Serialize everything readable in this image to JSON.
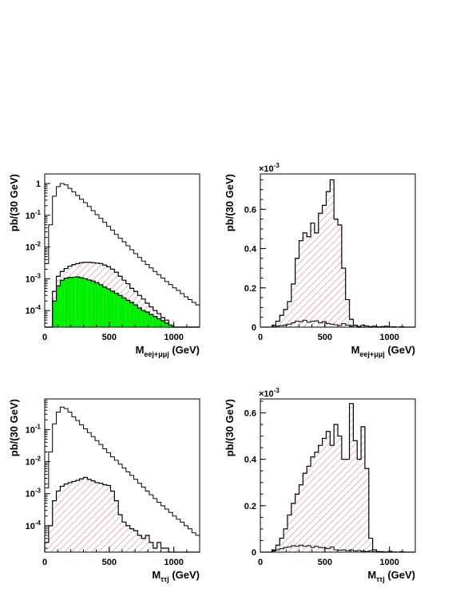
{
  "colors": {
    "frame": "#000000",
    "hatch": "#d9707a",
    "signal_fill": "#00ee00",
    "background": "#ffffff"
  },
  "chart_data": [
    {
      "id": "top-left",
      "type": "histogram",
      "yscale": "log",
      "xlim": [
        0,
        1200
      ],
      "ylim": [
        3e-05,
        2
      ],
      "bin_width": 30,
      "x_ticks": [
        0,
        500,
        1000
      ],
      "y_ticks": [
        {
          "value": 1,
          "label": "1",
          "sup": ""
        },
        {
          "value": 0.1,
          "label": "10",
          "sup": "-1"
        },
        {
          "value": 0.01,
          "label": "10",
          "sup": "-2"
        },
        {
          "value": 0.001,
          "label": "10",
          "sup": "-3"
        },
        {
          "value": 0.0001,
          "label": "10",
          "sup": "-4"
        }
      ],
      "ylabel": "pb/(30 GeV)",
      "xlabel": {
        "main": "M",
        "sub": "eej+μμj",
        "unit": "(GeV)"
      },
      "exponent_label": null,
      "series": [
        {
          "style": "open",
          "values": [
            0.003,
            0.05,
            0.4,
            0.8,
            1.0,
            0.9,
            0.7,
            0.55,
            0.42,
            0.32,
            0.25,
            0.19,
            0.14,
            0.105,
            0.08,
            0.06,
            0.045,
            0.034,
            0.025,
            0.019,
            0.0145,
            0.011,
            0.0082,
            0.0062,
            0.0047,
            0.0036,
            0.0028,
            0.0022,
            0.0017,
            0.00135,
            0.00105,
            0.00082,
            0.00066,
            0.00052,
            0.00043,
            0.00034,
            0.00027,
            0.00022,
            0.00018,
            0.00015
          ]
        },
        {
          "style": "hatched",
          "values": [
            0,
            0,
            0.0004,
            0.0012,
            0.0017,
            0.0021,
            0.0025,
            0.0028,
            0.003,
            0.0032,
            0.0033,
            0.0033,
            0.0032,
            0.0031,
            0.003,
            0.0027,
            0.0024,
            0.002,
            0.0016,
            0.0012,
            0.0009,
            0.0007,
            0.0005,
            0.0004,
            0.0003,
            0.00023,
            0.00017,
            0.00013,
            0.0001,
            8e-05,
            6e-05,
            5e-05,
            0,
            0,
            0,
            0,
            0,
            0,
            0,
            0
          ]
        },
        {
          "style": "filled",
          "values": [
            0,
            0,
            0.0002,
            0.0006,
            0.0009,
            0.00105,
            0.0011,
            0.00112,
            0.00115,
            0.00108,
            0.001,
            0.00092,
            0.00085,
            0.00075,
            0.00065,
            0.00055,
            0.00048,
            0.00041,
            0.00035,
            0.0003,
            0.00025,
            0.00021,
            0.00018,
            0.00015,
            0.00012,
            0.0001,
            9e-05,
            7.5e-05,
            6.5e-05,
            5.5e-05,
            4.8e-05,
            4e-05,
            3.5e-05,
            0,
            0,
            0,
            0,
            0,
            0,
            0
          ]
        }
      ]
    },
    {
      "id": "top-right",
      "type": "histogram",
      "yscale": "linear",
      "xlim": [
        0,
        1200
      ],
      "ylim": [
        0,
        0.00078
      ],
      "bin_width": 30,
      "x_ticks": [
        0,
        500,
        1000
      ],
      "y_ticks": [
        {
          "value": 0,
          "label": "0",
          "sup": ""
        },
        {
          "value": 0.0002,
          "label": "0.2",
          "sup": ""
        },
        {
          "value": 0.0004,
          "label": "0.4",
          "sup": ""
        },
        {
          "value": 0.0006,
          "label": "0.6",
          "sup": ""
        }
      ],
      "ylabel": "pb/(30 GeV)",
      "xlabel": {
        "main": "M",
        "sub": "eej+μμj",
        "unit": "(GeV)"
      },
      "exponent_label": {
        "base": "×10",
        "sup": "-3"
      },
      "series": [
        {
          "style": "hatched",
          "values": [
            0,
            0,
            0,
            1e-05,
            3e-05,
            6e-05,
            9e-05,
            0.00013,
            0.00022,
            0.00035,
            0.00044,
            0.00048,
            0.00046,
            0.00053,
            0.00048,
            0.00058,
            0.00062,
            0.00069,
            0.00075,
            0.00055,
            0.00052,
            0.0003,
            0.00014,
            4e-05,
            1e-05,
            0,
            0,
            0,
            0,
            0,
            0,
            0,
            0,
            0,
            0,
            0,
            0,
            0,
            0,
            0
          ]
        },
        {
          "style": "open",
          "values": [
            0,
            0,
            0,
            3e-06,
            5e-06,
            8e-06,
            1e-05,
            1.5e-05,
            2.2e-05,
            3e-05,
            2.8e-05,
            3.5e-05,
            2.5e-05,
            3e-05,
            3.2e-05,
            2.2e-05,
            2.8e-05,
            1.8e-05,
            1.5e-05,
            1.2e-05,
            8e-06,
            1.8e-05,
            1e-05,
            5e-06,
            8e-06,
            4e-06,
            1e-05,
            6e-06,
            3e-06,
            5e-06,
            2e-06,
            3e-06,
            5e-06,
            1e-06,
            2e-06,
            0,
            2e-06,
            0,
            0,
            0
          ]
        }
      ]
    },
    {
      "id": "bottom-left",
      "type": "histogram",
      "yscale": "log",
      "xlim": [
        0,
        1200
      ],
      "ylim": [
        1.5e-05,
        0.9
      ],
      "bin_width": 30,
      "x_ticks": [
        0,
        500,
        1000
      ],
      "y_ticks": [
        {
          "value": 0.1,
          "label": "10",
          "sup": "-1"
        },
        {
          "value": 0.01,
          "label": "10",
          "sup": "-2"
        },
        {
          "value": 0.001,
          "label": "10",
          "sup": "-3"
        },
        {
          "value": 0.0001,
          "label": "10",
          "sup": "-4"
        }
      ],
      "ylabel": "pb/(30 GeV)",
      "xlabel": {
        "main": "M",
        "sub": "ττj",
        "unit": "(GeV)"
      },
      "exponent_label": null,
      "series": [
        {
          "style": "open",
          "values": [
            0.0015,
            0.02,
            0.15,
            0.35,
            0.5,
            0.45,
            0.35,
            0.25,
            0.19,
            0.14,
            0.105,
            0.08,
            0.06,
            0.045,
            0.034,
            0.025,
            0.019,
            0.014,
            0.011,
            0.0083,
            0.0063,
            0.0048,
            0.0037,
            0.0028,
            0.0021,
            0.0016,
            0.0012,
            0.00092,
            0.0007,
            0.00054,
            0.00042,
            0.00033,
            0.00026,
            0.0002,
            0.00016,
            0.00013,
            0.0001,
            8e-05,
            6e-05,
            5e-05
          ]
        },
        {
          "style": "hatched",
          "values": [
            3e-05,
            0.0001,
            0.0006,
            0.0012,
            0.0017,
            0.002,
            0.0022,
            0.0024,
            0.0026,
            0.0029,
            0.0032,
            0.0028,
            0.0025,
            0.0022,
            0.0021,
            0.0019,
            0.0018,
            0.0012,
            0.0006,
            0.00022,
            0.00013,
            0.0001,
            8e-05,
            7e-05,
            5e-05,
            4e-05,
            5e-05,
            3e-05,
            2e-05,
            3e-05,
            2e-05,
            2e-05,
            0,
            0,
            0,
            0,
            0,
            0,
            0,
            0
          ]
        }
      ]
    },
    {
      "id": "bottom-right",
      "type": "histogram",
      "yscale": "linear",
      "xlim": [
        0,
        1200
      ],
      "ylim": [
        0,
        0.00066
      ],
      "bin_width": 30,
      "x_ticks": [
        0,
        500,
        1000
      ],
      "y_ticks": [
        {
          "value": 0,
          "label": "0",
          "sup": ""
        },
        {
          "value": 0.0002,
          "label": "0.2",
          "sup": ""
        },
        {
          "value": 0.0004,
          "label": "0.4",
          "sup": ""
        },
        {
          "value": 0.0006,
          "label": "0.6",
          "sup": ""
        }
      ],
      "ylabel": "pb/(30 GeV)",
      "xlabel": {
        "main": "M",
        "sub": "ττj",
        "unit": "(GeV)"
      },
      "exponent_label": {
        "base": "×10",
        "sup": "-3"
      },
      "series": [
        {
          "style": "hatched",
          "values": [
            0,
            0,
            0,
            1e-05,
            3e-05,
            6e-05,
            0.0001,
            0.00016,
            0.00021,
            0.00025,
            0.00029,
            0.00034,
            0.00037,
            0.00041,
            0.00043,
            0.00046,
            0.00049,
            0.00052,
            0.00046,
            0.00055,
            0.0005,
            0.0004,
            0.0004,
            0.00064,
            0.00048,
            0.0004,
            0.00054,
            0.00036,
            6e-05,
            1e-05,
            0,
            0,
            0,
            0,
            0,
            0,
            0,
            0,
            0,
            0
          ]
        },
        {
          "style": "open",
          "values": [
            0,
            0,
            0,
            5e-06,
            1e-05,
            1.5e-05,
            2e-05,
            2.2e-05,
            2.8e-05,
            2.5e-05,
            3e-05,
            2.5e-05,
            2.8e-05,
            2e-05,
            2.5e-05,
            2e-05,
            1.8e-05,
            1.5e-05,
            2.2e-05,
            1e-05,
            8e-06,
            1e-05,
            6e-06,
            1e-05,
            5e-06,
            7e-06,
            4e-06,
            3e-06,
            6e-06,
            2e-06,
            3e-06,
            2e-06,
            1e-06,
            4e-06,
            1e-06,
            0,
            2e-06,
            0,
            0,
            0
          ]
        }
      ]
    }
  ]
}
